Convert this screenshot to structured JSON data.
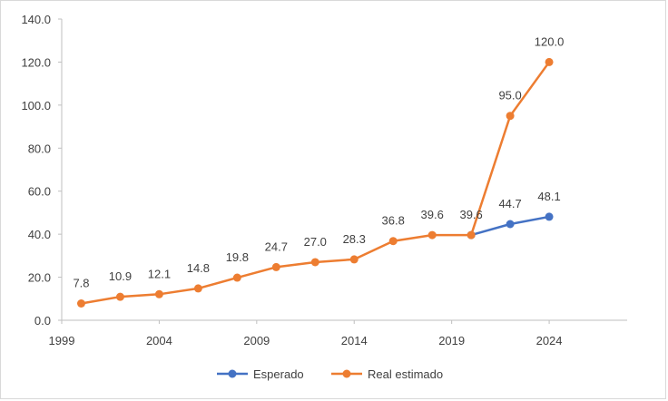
{
  "chart_data": {
    "type": "line",
    "title": "",
    "xlabel": "",
    "ylabel": "",
    "xlim": [
      1999,
      2028
    ],
    "ylim": [
      0,
      140
    ],
    "x_ticks": [
      "1999",
      "2004",
      "2009",
      "2014",
      "2019",
      "2024"
    ],
    "y_ticks": [
      "0.0",
      "20.0",
      "40.0",
      "60.0",
      "80.0",
      "100.0",
      "120.0",
      "140.0"
    ],
    "grid": false,
    "legend_position": "bottom",
    "series": [
      {
        "name": "Real estimado",
        "color": "#ed7d31",
        "x": [
          2000,
          2002,
          2004,
          2006,
          2008,
          2010,
          2012,
          2014,
          2016,
          2018,
          2020,
          2022,
          2024
        ],
        "values": [
          7.8,
          10.9,
          12.1,
          14.8,
          19.8,
          24.7,
          27.0,
          28.3,
          36.8,
          39.6,
          39.6,
          95.0,
          120.0
        ],
        "labels": [
          "7.8",
          "10.9",
          "12.1",
          "14.8",
          "19.8",
          "24.7",
          "27.0",
          "28.3",
          "36.8",
          "39.6",
          "39.6",
          "95.0",
          "120.0"
        ]
      },
      {
        "name": "Esperado",
        "color": "#4472c4",
        "x": [
          2020,
          2022,
          2024
        ],
        "values": [
          39.6,
          44.7,
          48.1
        ],
        "labels": [
          "",
          "44.7",
          "48.1"
        ]
      }
    ],
    "legend_order": [
      "Esperado",
      "Real estimado"
    ]
  }
}
